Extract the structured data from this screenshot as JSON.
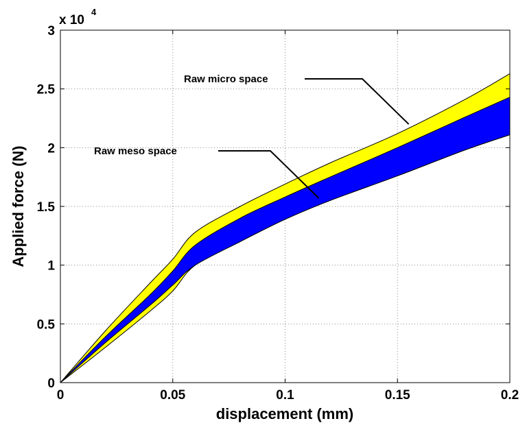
{
  "chart_data": {
    "type": "area",
    "xlabel": "displacement (mm)",
    "ylabel": "Applied force (N)",
    "y_multiplier_label": {
      "base": "x 10",
      "exponent": "4"
    },
    "xlim": [
      0,
      0.2
    ],
    "ylim": [
      0,
      30000
    ],
    "x_ticks": [
      0,
      0.05,
      0.1,
      0.15,
      0.2
    ],
    "x_tick_labels": [
      "0",
      "0.05",
      "0.1",
      "0.15",
      "0.2"
    ],
    "y_ticks": [
      0,
      5000,
      10000,
      15000,
      20000,
      25000,
      30000
    ],
    "y_tick_labels": [
      "0",
      "0.5",
      "1",
      "1.5",
      "2",
      "2.5",
      "3"
    ],
    "grid": true,
    "series": [
      {
        "name": "Raw micro space",
        "color": "#ffff00",
        "x": [
          0,
          0.02,
          0.04,
          0.05,
          0.06,
          0.08,
          0.1,
          0.12,
          0.15,
          0.18,
          0.2
        ],
        "upper": [
          0,
          4400,
          8500,
          10500,
          12800,
          15000,
          16900,
          18700,
          21200,
          24100,
          26300
        ],
        "lower": [
          0,
          3000,
          6100,
          7800,
          10000,
          12000,
          13900,
          15500,
          17600,
          19800,
          21100
        ]
      },
      {
        "name": "Raw meso space",
        "color": "#0000ff",
        "x": [
          0,
          0.02,
          0.04,
          0.05,
          0.06,
          0.08,
          0.1,
          0.12,
          0.15,
          0.18,
          0.2
        ],
        "upper": [
          0,
          3900,
          7500,
          9500,
          11700,
          14000,
          15800,
          17500,
          20000,
          22600,
          24300
        ],
        "lower": [
          0,
          3400,
          6600,
          8300,
          10000,
          12000,
          13900,
          15500,
          17600,
          19800,
          21100
        ]
      }
    ],
    "annotations": [
      {
        "text": "Raw micro space",
        "target": [
          0.155,
          22000
        ]
      },
      {
        "text": "Raw meso space",
        "target": [
          0.115,
          15700
        ]
      }
    ]
  }
}
